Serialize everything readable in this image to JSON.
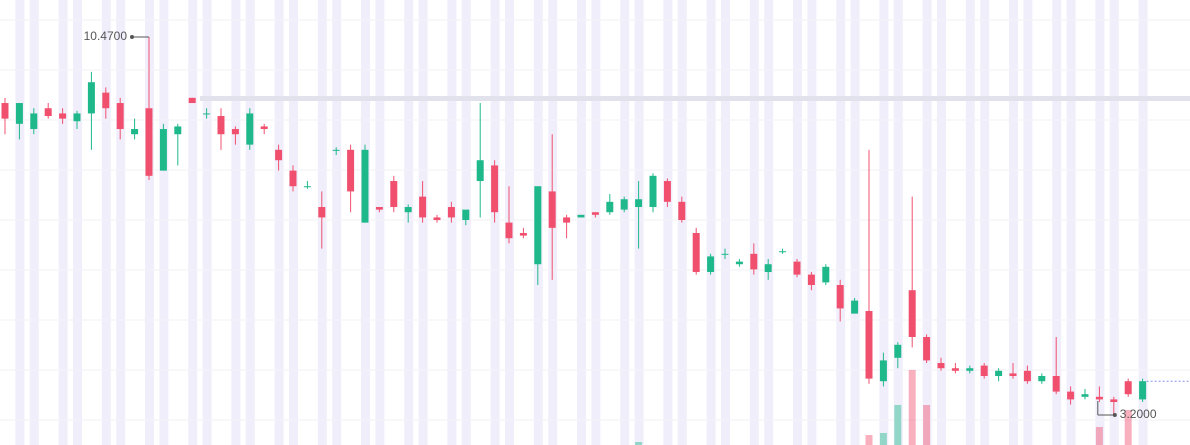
{
  "chart_data": {
    "type": "candlestick",
    "open": [
      9.2,
      8.8,
      8.7,
      9.1,
      9.0,
      8.85,
      9.0,
      9.4,
      9.2,
      8.6,
      9.1,
      7.9,
      8.6,
      9.3,
      9.0,
      8.95,
      8.7,
      8.4,
      8.75,
      8.3,
      7.9,
      7.6,
      7.2,
      8.3,
      8.3,
      6.9,
      7.2,
      7.7,
      7.1,
      7.4,
      7.0,
      7.2,
      6.95,
      7.7,
      8.0,
      6.9,
      6.7,
      6.1,
      7.5,
      7.0,
      7.0,
      7.1,
      7.1,
      7.15,
      7.2,
      7.2,
      7.7,
      7.3,
      6.7,
      5.95,
      6.3,
      6.1,
      6.3,
      5.95,
      6.35,
      6.15,
      5.9,
      5.75,
      5.7,
      5.15,
      5.2,
      3.85,
      4.3,
      5.6,
      4.7,
      4.2,
      4.1,
      4.05,
      4.15,
      3.95,
      4.0,
      4.05,
      3.85,
      3.95,
      3.65,
      3.55,
      3.55,
      3.5,
      3.85,
      3.5
    ],
    "high": [
      9.3,
      9.2,
      9.1,
      9.2,
      9.1,
      9.05,
      9.8,
      9.5,
      9.3,
      8.9,
      10.47,
      8.8,
      8.8,
      9.3,
      9.1,
      9.1,
      8.75,
      9.1,
      8.8,
      8.4,
      8.0,
      7.7,
      7.5,
      8.35,
      8.4,
      8.4,
      7.2,
      7.8,
      7.25,
      7.7,
      7.05,
      7.3,
      7.1,
      9.2,
      8.1,
      7.6,
      6.8,
      7.6,
      8.6,
      7.05,
      7.05,
      7.1,
      7.45,
      7.4,
      7.7,
      7.85,
      7.75,
      7.4,
      6.8,
      6.3,
      6.4,
      6.2,
      6.5,
      6.2,
      6.4,
      6.2,
      5.95,
      6.1,
      5.8,
      5.45,
      8.3,
      4.4,
      4.6,
      7.4,
      4.75,
      4.3,
      4.2,
      4.15,
      4.2,
      4.1,
      4.2,
      4.15,
      4.0,
      4.7,
      3.75,
      3.7,
      3.75,
      3.55,
      3.9,
      3.9
    ],
    "low": [
      8.6,
      8.5,
      8.6,
      8.9,
      8.8,
      8.7,
      8.3,
      8.9,
      8.5,
      8.5,
      7.72,
      7.9,
      8.0,
      9.2,
      8.9,
      8.3,
      8.4,
      8.3,
      8.6,
      7.9,
      7.5,
      7.55,
      6.4,
      8.2,
      7.1,
      6.9,
      7.1,
      7.1,
      6.9,
      6.9,
      6.9,
      6.9,
      6.85,
      7.0,
      6.9,
      6.5,
      6.6,
      5.7,
      5.8,
      6.6,
      7.0,
      7.0,
      7.05,
      7.1,
      6.4,
      7.1,
      7.2,
      6.9,
      5.9,
      5.9,
      6.2,
      6.05,
      5.9,
      5.8,
      6.3,
      5.85,
      5.6,
      5.7,
      5.0,
      5.15,
      3.8,
      3.75,
      4.1,
      4.5,
      4.2,
      4.05,
      4.0,
      4.0,
      3.9,
      3.85,
      3.9,
      3.8,
      3.8,
      3.6,
      3.4,
      3.5,
      3.45,
      3.2,
      3.55,
      3.45
    ],
    "close": [
      8.9,
      9.2,
      9.0,
      8.95,
      8.9,
      9.0,
      9.6,
      9.1,
      8.7,
      8.7,
      7.8,
      8.7,
      8.75,
      9.2,
      9.0,
      8.6,
      8.6,
      9.0,
      8.7,
      8.1,
      7.6,
      7.6,
      7.0,
      8.3,
      7.5,
      8.3,
      7.15,
      7.2,
      7.2,
      7.0,
      6.95,
      7.0,
      7.15,
      8.1,
      7.1,
      6.6,
      6.65,
      7.6,
      6.8,
      6.9,
      7.05,
      7.05,
      7.3,
      7.35,
      7.35,
      7.8,
      7.3,
      6.95,
      5.95,
      6.25,
      6.3,
      6.15,
      6.0,
      6.1,
      6.35,
      5.9,
      5.7,
      6.05,
      5.25,
      5.4,
      3.9,
      4.25,
      4.55,
      4.7,
      4.25,
      4.1,
      4.05,
      4.1,
      3.95,
      4.05,
      3.95,
      3.85,
      3.95,
      3.65,
      3.5,
      3.6,
      3.5,
      3.45,
      3.6,
      3.85
    ],
    "volume": [
      0,
      0,
      0,
      0,
      0,
      0,
      0,
      0,
      0,
      0,
      0,
      0,
      0,
      0,
      0,
      0,
      0,
      0,
      0,
      0,
      0,
      0,
      0,
      0,
      0,
      0,
      0,
      0,
      0,
      0,
      0,
      0,
      0,
      0,
      0,
      0,
      0,
      0,
      0,
      0,
      0,
      0,
      0,
      0,
      3,
      0,
      0,
      0,
      0,
      0,
      0,
      0,
      0,
      0,
      0,
      0,
      0,
      0,
      0,
      0,
      10,
      12,
      40,
      75,
      40,
      0,
      0,
      0,
      0,
      0,
      0,
      0,
      0,
      0,
      0,
      0,
      18,
      0,
      35,
      0
    ],
    "up_color": "#1fb88a",
    "down_color": "#f0506e",
    "annotations": {
      "high": {
        "value": 10.47,
        "label": "10.4700"
      },
      "low": {
        "value": 3.2,
        "label": "3.2000"
      }
    }
  }
}
